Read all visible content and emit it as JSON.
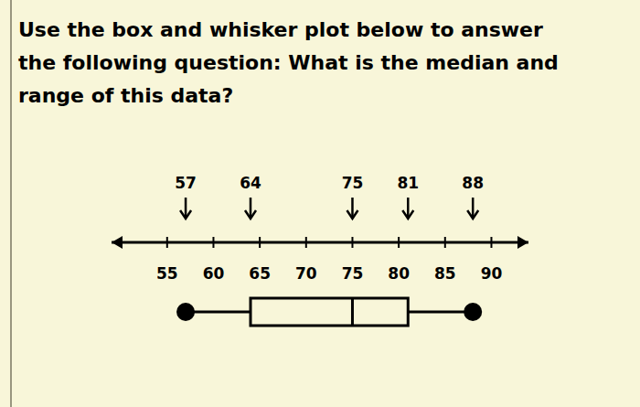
{
  "chart_data": {
    "type": "box",
    "title": "Use the box and whisker plot below to answer\nthe following question: What is the median and\nrange of this data?",
    "stats": {
      "min": 57,
      "q1": 64,
      "median": 75,
      "q3": 81,
      "max": 88
    },
    "xlim": [
      49,
      94
    ],
    "xticks": [
      55,
      60,
      65,
      70,
      75,
      80,
      85,
      90
    ],
    "data_labels": true,
    "color": "#000000"
  }
}
